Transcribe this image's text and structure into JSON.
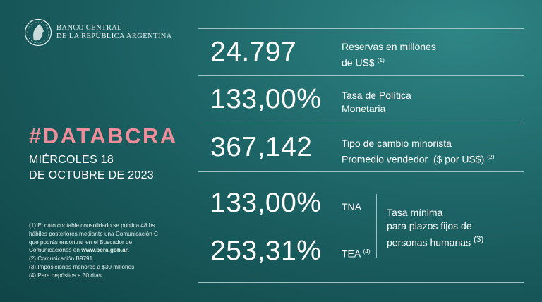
{
  "header": {
    "logo_line1": "BANCO CENTRAL",
    "logo_line2": "DE LA REPÚBLICA ARGENTINA"
  },
  "brand": {
    "hashtag": "#DATABCRA",
    "date_line1": "MIÉRCOLES 18",
    "date_line2": "DE OCTUBRE DE 2023"
  },
  "indicators": [
    {
      "value": "24.797",
      "label_line1": "Reservas en millones",
      "label_line2": "de US$",
      "note": "(1)"
    },
    {
      "value": "133,00%",
      "label_line1": "Tasa de Política",
      "label_line2": "Monetaria",
      "note": ""
    },
    {
      "value": "367,142",
      "label_line1": "Tipo de cambio minorista",
      "label_line2": "Promedio vendedor  ($ por US$)",
      "note": "(2)"
    }
  ],
  "plazo_fijo": {
    "tna_value": "133,00%",
    "tna_label": "TNA",
    "tea_value": "253,31%",
    "tea_label": "TEA",
    "tea_note": "(4)",
    "desc_line1": "Tasa mínima",
    "desc_line2": "para plazos fijos de",
    "desc_line3": "personas humanas",
    "desc_note": "(3)"
  },
  "footnotes": {
    "n1_line1": "(1) El dato contable consolidado se publica 48 hs.",
    "n1_line2": "hábiles posteriores mediante una Comunicación C",
    "n1_line3": "que podrás encontrar en el Buscador de",
    "n1_line4_prefix": "Comunicaciones en ",
    "n1_link": "www.bcra.gob.ar",
    "n1_line4_suffix": ".",
    "n2": "(2) Comunicación B9791.",
    "n3": "(3) Imposiciones menores a $30 millones.",
    "n4": "(4) Para depósitos a 30 días."
  },
  "colors": {
    "background": "#1d6466",
    "accent": "#f08d9a",
    "rule": "#9fc3c3"
  }
}
